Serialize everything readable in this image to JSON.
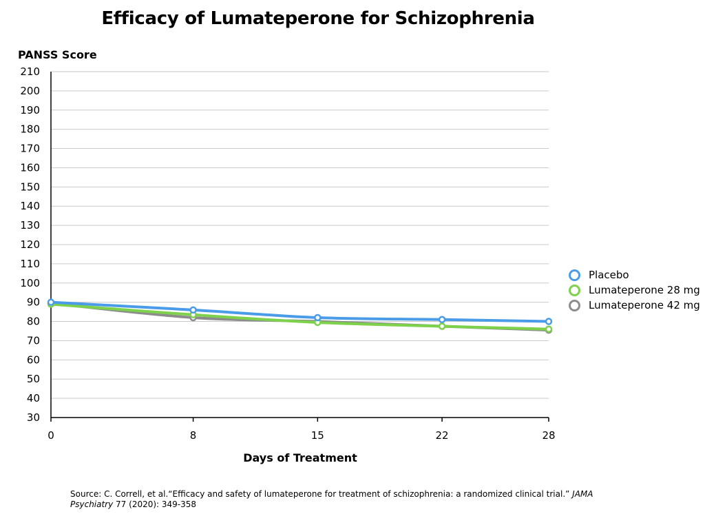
{
  "chart_data": {
    "type": "line",
    "title": "Efficacy of Lumateperone for Schizophrenia",
    "ylabel": "PANSS Score",
    "xlabel": "Days of Treatment",
    "x": [
      0,
      8,
      15,
      22,
      28
    ],
    "ylim": [
      30,
      210
    ],
    "yticks": [
      30,
      40,
      50,
      60,
      70,
      80,
      90,
      100,
      110,
      120,
      130,
      140,
      150,
      160,
      170,
      180,
      190,
      200,
      210
    ],
    "grid": true,
    "legend_position": "right",
    "series": [
      {
        "name": "Placebo",
        "color": "#4a9be8",
        "values": [
          90,
          86,
          82,
          81,
          80
        ]
      },
      {
        "name": "Lumateperone 28 mg",
        "color": "#7ed14a",
        "values": [
          89,
          83.5,
          79.5,
          77.5,
          76
        ]
      },
      {
        "name": "Lumateperone 42 mg",
        "color": "#8c8c8c",
        "values": [
          89.5,
          82,
          80,
          77.5,
          75.5
        ]
      }
    ]
  },
  "source": {
    "prefix": "Source: C. Correll, et al.“Efficacy and safety of lumateperone for treatment of schizophrenia:  a randomized clinical trial.” ",
    "journal": "JAMA Psychiatry",
    "suffix": " 77 (2020): 349-358"
  }
}
